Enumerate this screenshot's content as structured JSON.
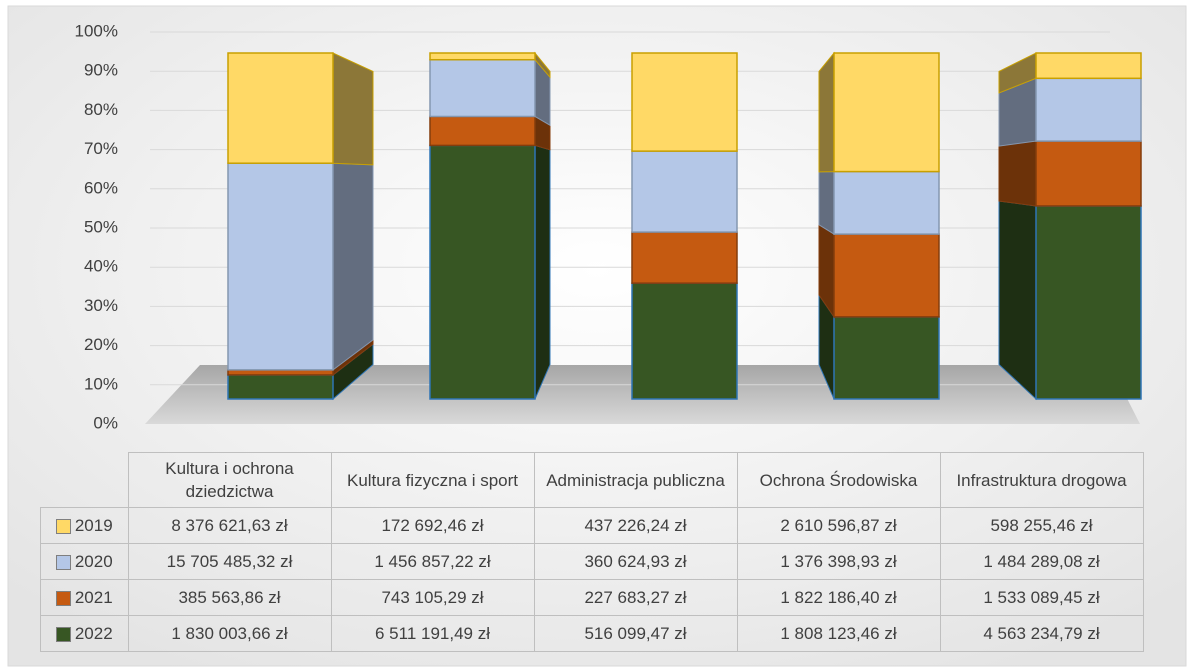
{
  "chart_data": {
    "type": "bar",
    "stacking": "percent",
    "categories": [
      "Kultura i ochrona dziedzictwa",
      "Kultura fizyczna i sport",
      "Administracja publiczna",
      "Ochrona Środowiska",
      "Infrastruktura drogowa"
    ],
    "series": [
      {
        "name": "2019",
        "color": "#ffd966",
        "values": [
          8376621.63,
          172692.46,
          437226.24,
          2610596.87,
          598255.46
        ],
        "value_labels": [
          "8 376 621,63 zł",
          "172 692,46 zł",
          "437 226,24 zł",
          "2 610 596,87 zł",
          "598 255,46 zł"
        ]
      },
      {
        "name": "2020",
        "color": "#b4c7e7",
        "values": [
          15705485.32,
          1456857.22,
          360624.93,
          1376398.93,
          1484289.08
        ],
        "value_labels": [
          "15 705 485,32 zł",
          "1 456 857,22 zł",
          "360 624,93 zł",
          "1 376 398,93 zł",
          "1 484 289,08 zł"
        ]
      },
      {
        "name": "2021",
        "color": "#c55a11",
        "values": [
          385563.86,
          743105.29,
          227683.27,
          1822186.4,
          1533089.45
        ],
        "value_labels": [
          "385 563,86 zł",
          "743 105,29 zł",
          "227 683,27 zł",
          "1 822 186,40 zł",
          "1 533 089,45 zł"
        ]
      },
      {
        "name": "2022",
        "color": "#375623",
        "values": [
          1830003.66,
          6511191.49,
          516099.47,
          1808123.46,
          4563234.79
        ],
        "value_labels": [
          "1 830 003,66 zł",
          "6 511 191,49 zł",
          "516 099,47 zł",
          "1 808 123,46 zł",
          "4 563 234,79 zł"
        ]
      }
    ],
    "ylim": [
      0,
      100
    ],
    "yticks": [
      {
        "value": 0,
        "label": "0%"
      },
      {
        "value": 10,
        "label": "10%"
      },
      {
        "value": 20,
        "label": "20%"
      },
      {
        "value": 30,
        "label": "30%"
      },
      {
        "value": 40,
        "label": "40%"
      },
      {
        "value": 50,
        "label": "50%"
      },
      {
        "value": 60,
        "label": "60%"
      },
      {
        "value": 70,
        "label": "70%"
      },
      {
        "value": 80,
        "label": "80%"
      },
      {
        "value": 90,
        "label": "90%"
      },
      {
        "value": 100,
        "label": "100%"
      }
    ],
    "grid": true
  }
}
